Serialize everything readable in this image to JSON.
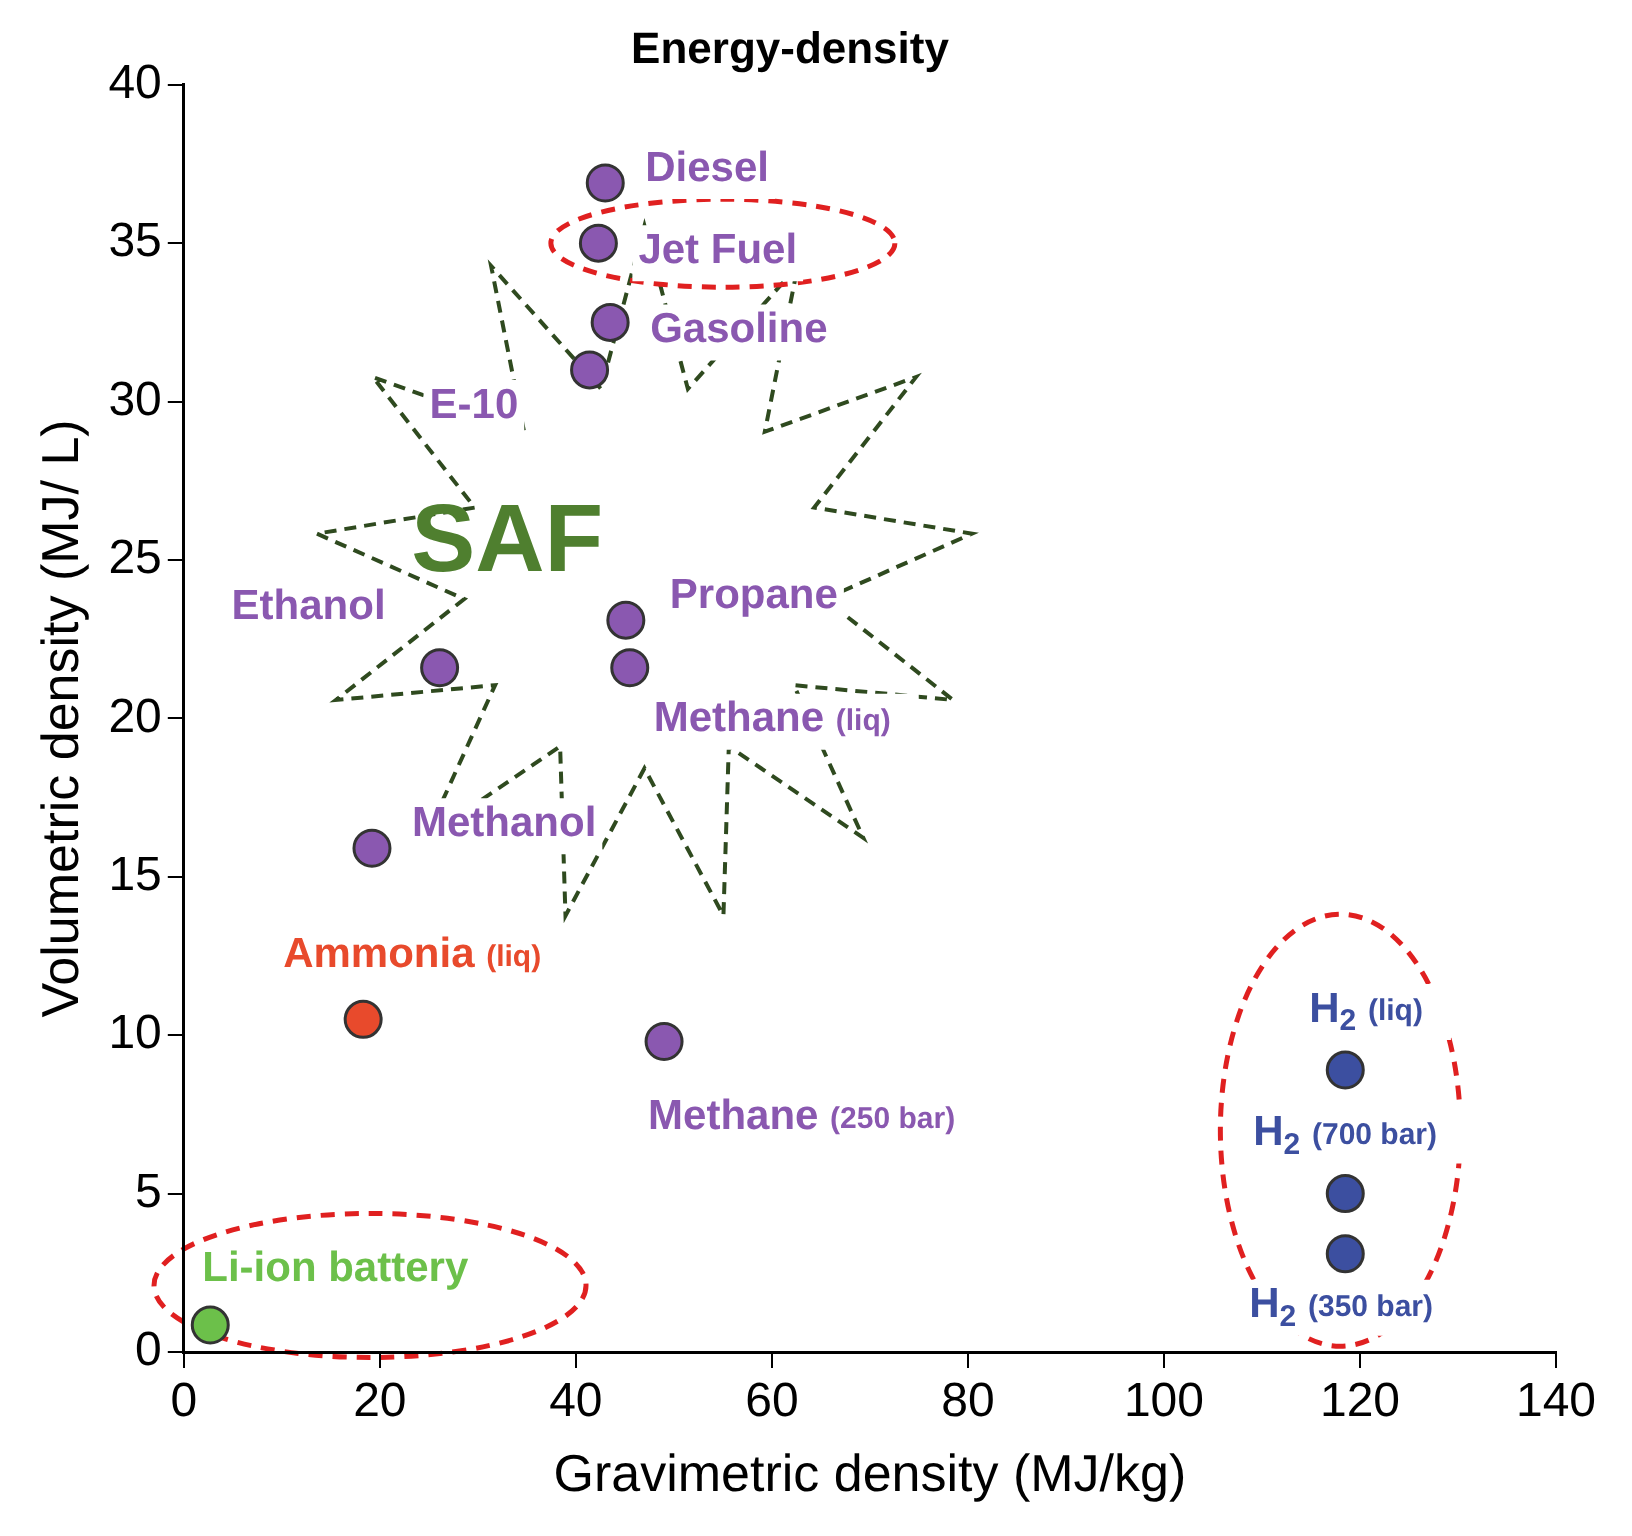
{
  "chart_data": {
    "type": "scatter",
    "title": "Energy-density",
    "xlabel": "Gravimetric density (MJ/kg)",
    "ylabel": "Volumetric density (MJ/ L)",
    "xlim": [
      0,
      140
    ],
    "xticks": [
      0,
      20,
      40,
      60,
      80,
      100,
      120,
      140
    ],
    "ylim": [
      0,
      40
    ],
    "yticks": [
      0,
      5,
      10,
      15,
      20,
      25,
      30,
      35,
      40
    ],
    "grid": false,
    "legend": false,
    "marker": "circle",
    "series": [
      {
        "color": "#8a58b0",
        "x": [
          43,
          42.3,
          43.5,
          41.4,
          45.1,
          45.5,
          26.1,
          19.2,
          49
        ],
        "values": [
          36.9,
          35,
          32.5,
          31,
          23.1,
          21.6,
          21.6,
          15.9,
          9.8
        ]
      },
      {
        "color": "#e84a2c",
        "x": [
          18.3
        ],
        "values": [
          10.5
        ]
      },
      {
        "color": "#3c4fa0",
        "x": [
          118.5,
          118.5,
          118.5
        ],
        "values": [
          8.9,
          5,
          3.1
        ]
      },
      {
        "color": "#6cc04a",
        "x": [
          2.7
        ],
        "values": [
          0.85
        ]
      }
    ],
    "annotations": [
      {
        "text": "Diesel",
        "x": 43,
        "y": 36.9
      },
      {
        "text": "Jet Fuel",
        "x": 42.3,
        "y": 35
      },
      {
        "text": "Gasoline",
        "x": 43.5,
        "y": 32.5
      },
      {
        "text": "E-10",
        "x": 41.4,
        "y": 31
      },
      {
        "text": "Propane",
        "x": 45.1,
        "y": 23.1
      },
      {
        "text": "Methane (liq)",
        "x": 45.5,
        "y": 21.6
      },
      {
        "text": "Ethanol",
        "x": 26.1,
        "y": 21.6
      },
      {
        "text": "Methanol",
        "x": 19.2,
        "y": 15.9
      },
      {
        "text": "Ammonia (liq)",
        "x": 18.3,
        "y": 10.5
      },
      {
        "text": "Methane (250 bar)",
        "x": 49,
        "y": 9.8
      },
      {
        "text": "H$_{2}$ (liq)",
        "x": 118.5,
        "y": 8.9
      },
      {
        "text": "H$_{2}$ (700 bar)",
        "x": 118.5,
        "y": 5
      },
      {
        "text": "H$_{2}$ (350 bar)",
        "x": 118.5,
        "y": 3.1
      },
      {
        "text": "Li-ion battery",
        "x": 2.7,
        "y": 0.85
      },
      "SAF"
    ]
  }
}
